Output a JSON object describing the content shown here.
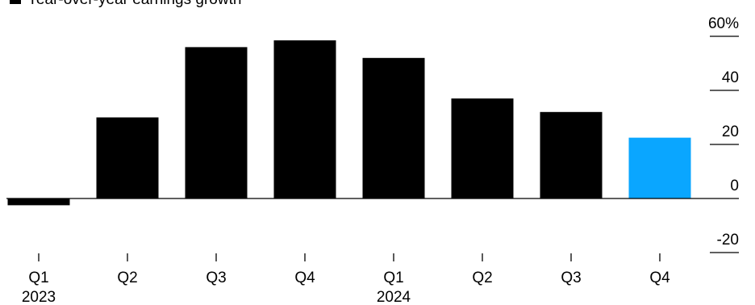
{
  "chart_data": {
    "type": "bar",
    "title": "",
    "xlabel": "",
    "ylabel": "",
    "legend": {
      "label": "Year-over-year earnings growth",
      "position": "top-left",
      "swatch_color": "#000000"
    },
    "categories": [
      "Q1",
      "Q2",
      "Q3",
      "Q4",
      "Q1",
      "Q2",
      "Q3",
      "Q4"
    ],
    "year_labels": [
      {
        "category_index": 0,
        "label": "2023"
      },
      {
        "category_index": 4,
        "label": "2024"
      }
    ],
    "values": [
      -2.5,
      30,
      56,
      58.5,
      52,
      37,
      32,
      22.5
    ],
    "bar_colors": [
      "#000000",
      "#000000",
      "#000000",
      "#000000",
      "#000000",
      "#000000",
      "#000000",
      "#0aa6ff"
    ],
    "ylim": [
      -20,
      60
    ],
    "y_ticks": [
      {
        "value": 60,
        "label": "60%"
      },
      {
        "value": 40,
        "label": "40"
      },
      {
        "value": 20,
        "label": "20"
      },
      {
        "value": 0,
        "label": "0"
      },
      {
        "value": -20,
        "label": "-20"
      }
    ],
    "y_axis_position": "right",
    "grid": false
  }
}
